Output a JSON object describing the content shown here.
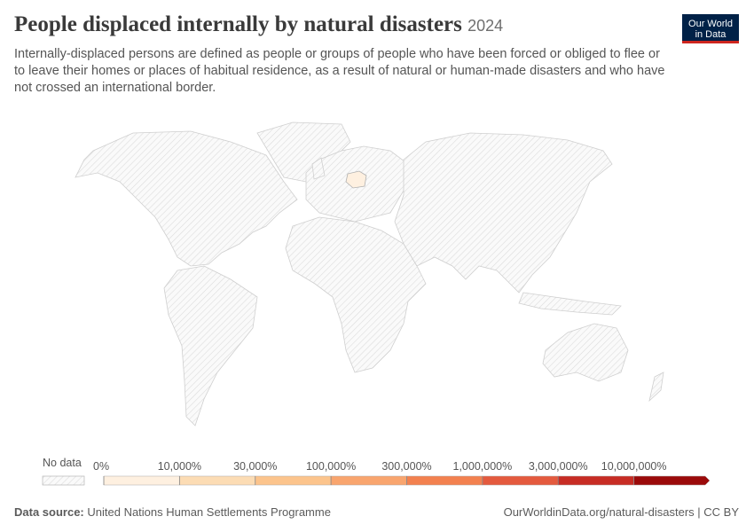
{
  "header": {
    "title": "People displaced internally by natural disasters",
    "year": "2024",
    "subtitle": "Internally-displaced persons are defined as people or groups of people who have been forced or obliged to flee or to leave their homes or places of habitual residence, as a result of natural or human-made disasters and who have not crossed an international border."
  },
  "logo": [
    "Our World",
    "in Data"
  ],
  "legend": {
    "no_data_label": "No data",
    "ticks": [
      {
        "value": 0,
        "label": "0%"
      },
      {
        "value": 10000,
        "label": "10,000%"
      },
      {
        "value": 30000,
        "label": "30,000%"
      },
      {
        "value": 100000,
        "label": "100,000%"
      },
      {
        "value": 300000,
        "label": "300,000%"
      },
      {
        "value": 1000000,
        "label": "1,000,000%"
      },
      {
        "value": 3000000,
        "label": "3,000,000%"
      },
      {
        "value": 10000000,
        "label": "10,000,000%"
      }
    ],
    "colors": [
      "#fef0e0",
      "#fcdcb4",
      "#fcc48c",
      "#f9a56e",
      "#f3814f",
      "#e45a3e",
      "#c72c24",
      "#9b0a0a"
    ]
  },
  "footer": {
    "source_label": "Data source:",
    "source": "United Nations Human Settlements Programme",
    "url_license": "OurWorldinData.org/natural-disasters | CC BY"
  }
}
